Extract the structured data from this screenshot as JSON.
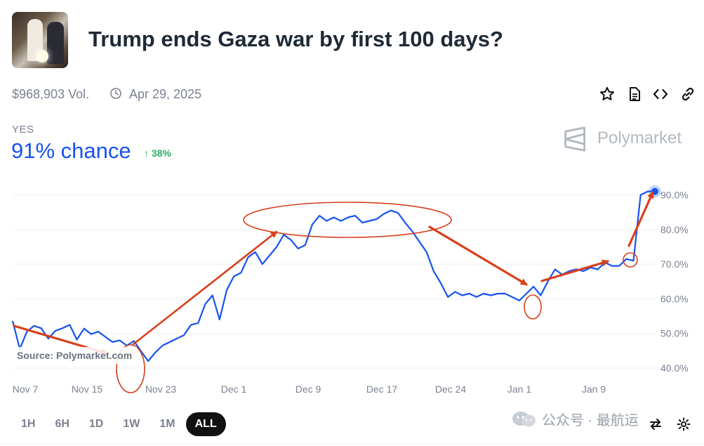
{
  "header": {
    "title": "Trump ends Gaza war by first 100 days?",
    "volume": "$968,903 Vol.",
    "end_date": "Apr 29, 2025",
    "thumbnail_icon": "market-thumbnail-image"
  },
  "toolbar": {
    "icons": [
      "star-icon",
      "document-icon",
      "embed-code-icon",
      "link-icon"
    ]
  },
  "outcome": {
    "label": "YES",
    "chance": "91% chance",
    "change": "↑ 38%",
    "change_color": "#27ae60"
  },
  "brand": {
    "name": "Polymarket"
  },
  "source": "Source: Polymarket.com",
  "ranges": {
    "items": [
      "1H",
      "6H",
      "1D",
      "1W",
      "1M",
      "ALL"
    ],
    "selected": "ALL"
  },
  "watermark": "公众号 · 最航运",
  "colors": {
    "line": "#1652f0",
    "accent": "#1652f0",
    "annotation": "#d7401b"
  },
  "chart_data": {
    "type": "line",
    "title": "",
    "xlabel": "",
    "ylabel": "",
    "x_ticks": [
      "Nov 7",
      "Nov 15",
      "Nov 23",
      "Dec 1",
      "Dec 9",
      "Dec 17",
      "Dec 24",
      "Jan 1",
      "Jan 9"
    ],
    "y_ticks": [
      "40.0%",
      "50.0%",
      "60.0%",
      "70.0%",
      "80.0%",
      "90.0%"
    ],
    "ylim": [
      39,
      92
    ],
    "grid": true,
    "series": [
      {
        "values": [
          [
            0,
            53.6
          ],
          [
            1,
            45.5
          ],
          [
            2,
            50.5
          ],
          [
            3,
            52.2
          ],
          [
            4,
            51.5
          ],
          [
            5,
            48.5
          ],
          [
            6,
            50.8
          ],
          [
            7,
            51.5
          ],
          [
            8,
            52.5
          ],
          [
            9,
            48.2
          ],
          [
            10,
            51.4
          ],
          [
            11,
            49.8
          ],
          [
            12,
            50.5
          ],
          [
            13,
            49.0
          ],
          [
            14,
            47.5
          ],
          [
            15,
            48.0
          ],
          [
            16,
            46.5
          ],
          [
            17,
            47.8
          ],
          [
            18,
            44.8
          ],
          [
            19,
            42.0
          ],
          [
            20,
            44.5
          ],
          [
            21,
            46.5
          ],
          [
            22,
            47.5
          ],
          [
            23,
            48.5
          ],
          [
            24,
            49.5
          ],
          [
            25,
            52.5
          ],
          [
            26,
            53.0
          ],
          [
            27,
            58.5
          ],
          [
            28,
            61.0
          ],
          [
            29,
            54.0
          ],
          [
            30,
            62.5
          ],
          [
            31,
            66.5
          ],
          [
            32,
            67.5
          ],
          [
            33,
            72.0
          ],
          [
            34,
            73.5
          ],
          [
            35,
            70.0
          ],
          [
            36,
            72.5
          ],
          [
            37,
            75.0
          ],
          [
            38,
            78.5
          ],
          [
            39,
            77.0
          ],
          [
            40,
            74.5
          ],
          [
            41,
            75.5
          ],
          [
            42,
            81.5
          ],
          [
            43,
            84.0
          ],
          [
            44,
            82.5
          ],
          [
            45,
            83.5
          ],
          [
            46,
            82.5
          ],
          [
            47,
            83.5
          ],
          [
            48,
            84.0
          ],
          [
            49,
            82.0
          ],
          [
            50,
            82.5
          ],
          [
            51,
            83.0
          ],
          [
            52,
            84.5
          ],
          [
            53,
            85.5
          ],
          [
            54,
            84.8
          ],
          [
            55,
            82.0
          ],
          [
            56,
            79.5
          ],
          [
            57,
            76.5
          ],
          [
            58,
            73.5
          ],
          [
            59,
            68.0
          ],
          [
            60,
            64.5
          ],
          [
            61,
            60.5
          ],
          [
            62,
            62.0
          ],
          [
            63,
            61.0
          ],
          [
            64,
            61.5
          ],
          [
            65,
            60.5
          ],
          [
            66,
            61.5
          ],
          [
            67,
            61.0
          ],
          [
            68,
            61.5
          ],
          [
            69,
            61.5
          ],
          [
            70,
            60.5
          ],
          [
            71,
            59.5
          ],
          [
            72,
            61.5
          ],
          [
            73,
            63.5
          ],
          [
            74,
            61.0
          ],
          [
            75,
            65.0
          ],
          [
            76,
            68.5
          ],
          [
            77,
            67.0
          ],
          [
            78,
            68.0
          ],
          [
            79,
            68.5
          ],
          [
            80,
            68.0
          ],
          [
            81,
            69.0
          ],
          [
            82,
            68.5
          ],
          [
            83,
            70.5
          ],
          [
            84,
            69.5
          ],
          [
            85,
            69.5
          ],
          [
            86,
            71.5
          ],
          [
            87,
            71.0
          ],
          [
            88,
            90.0
          ],
          [
            89,
            91.0
          ],
          [
            90,
            91.0
          ]
        ]
      }
    ]
  }
}
